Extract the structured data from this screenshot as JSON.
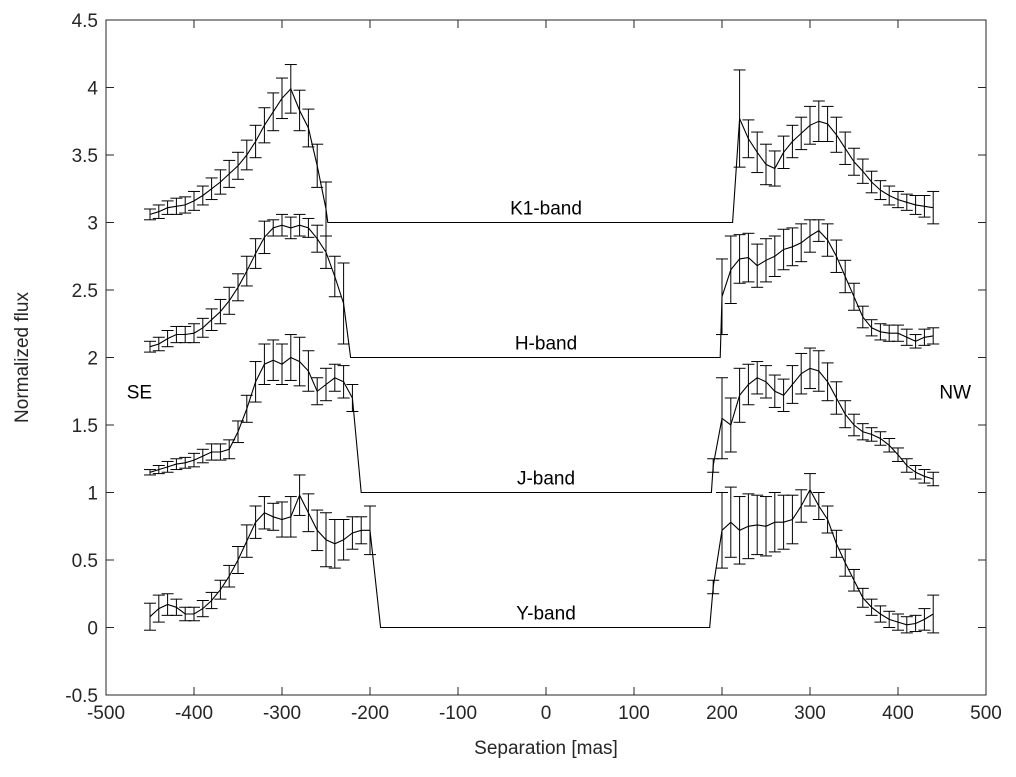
{
  "chart_data": {
    "type": "line",
    "xlabel": "Separation [mas]",
    "ylabel": "Normalized flux",
    "xlim": [
      -500,
      500
    ],
    "ylim": [
      -0.5,
      4.5
    ],
    "xticks": [
      -500,
      -400,
      -300,
      -200,
      -100,
      0,
      100,
      200,
      300,
      400,
      500
    ],
    "yticks": [
      -0.5,
      0,
      0.5,
      1,
      1.5,
      2,
      2.5,
      3,
      3.5,
      4,
      4.5
    ],
    "xtick_labels": [
      "-500",
      "-400",
      "-300",
      "-200",
      "-100",
      "0",
      "100",
      "200",
      "300",
      "400",
      "500"
    ],
    "ytick_labels": [
      "-0.5",
      "0",
      "0.5",
      "1",
      "1.5",
      "2",
      "2.5",
      "3",
      "3.5",
      "4",
      "4.5"
    ],
    "grid": false,
    "box": true,
    "annotations": [
      {
        "text": "SE",
        "x": -462,
        "y": 1.75
      },
      {
        "text": "NW",
        "x": 465,
        "y": 1.75
      }
    ],
    "series": [
      {
        "label": "K1-band",
        "label_pos": {
          "x": 0,
          "y": 3.11
        },
        "baseline": 3.0,
        "baseline_x": [
          -248,
          212
        ],
        "left": {
          "x": [
            -450,
            -440,
            -430,
            -420,
            -410,
            -400,
            -390,
            -380,
            -370,
            -360,
            -350,
            -340,
            -330,
            -320,
            -310,
            -300,
            -290,
            -280,
            -270,
            -260,
            -250
          ],
          "y": [
            3.06,
            3.08,
            3.11,
            3.12,
            3.13,
            3.16,
            3.2,
            3.25,
            3.3,
            3.36,
            3.42,
            3.5,
            3.6,
            3.72,
            3.82,
            3.92,
            3.99,
            3.83,
            3.7,
            3.42,
            3.1
          ],
          "err": [
            0.04,
            0.05,
            0.05,
            0.06,
            0.06,
            0.07,
            0.07,
            0.08,
            0.09,
            0.1,
            0.1,
            0.11,
            0.12,
            0.13,
            0.14,
            0.15,
            0.18,
            0.15,
            0.14,
            0.16,
            0.2
          ]
        },
        "right": {
          "x": [
            220,
            230,
            240,
            250,
            260,
            270,
            280,
            290,
            300,
            310,
            320,
            330,
            340,
            350,
            360,
            370,
            380,
            390,
            400,
            410,
            420,
            430,
            440
          ],
          "y": [
            3.77,
            3.62,
            3.52,
            3.43,
            3.4,
            3.52,
            3.6,
            3.66,
            3.72,
            3.75,
            3.73,
            3.65,
            3.55,
            3.45,
            3.38,
            3.3,
            3.24,
            3.2,
            3.17,
            3.15,
            3.13,
            3.12,
            3.11
          ],
          "err": [
            0.36,
            0.14,
            0.15,
            0.15,
            0.13,
            0.12,
            0.12,
            0.12,
            0.14,
            0.15,
            0.13,
            0.13,
            0.12,
            0.1,
            0.09,
            0.08,
            0.07,
            0.07,
            0.06,
            0.06,
            0.07,
            0.08,
            0.12
          ]
        }
      },
      {
        "label": "H-band",
        "label_pos": {
          "x": 0,
          "y": 2.11
        },
        "baseline": 2.0,
        "baseline_x": [
          -222,
          198
        ],
        "left": {
          "x": [
            -450,
            -440,
            -430,
            -420,
            -410,
            -400,
            -390,
            -380,
            -370,
            -360,
            -350,
            -340,
            -330,
            -320,
            -310,
            -300,
            -290,
            -280,
            -270,
            -260,
            -250,
            -240,
            -230
          ],
          "y": [
            2.08,
            2.1,
            2.14,
            2.17,
            2.17,
            2.18,
            2.22,
            2.28,
            2.34,
            2.42,
            2.52,
            2.64,
            2.77,
            2.89,
            2.96,
            2.98,
            2.96,
            2.98,
            2.96,
            2.88,
            2.78,
            2.6,
            2.4
          ],
          "err": [
            0.04,
            0.05,
            0.06,
            0.06,
            0.06,
            0.07,
            0.07,
            0.08,
            0.09,
            0.1,
            0.1,
            0.11,
            0.11,
            0.12,
            0.06,
            0.08,
            0.08,
            0.08,
            0.07,
            0.1,
            0.12,
            0.15,
            0.3
          ]
        },
        "right": {
          "x": [
            200,
            210,
            220,
            230,
            240,
            250,
            260,
            270,
            280,
            290,
            300,
            310,
            320,
            330,
            340,
            350,
            360,
            370,
            380,
            390,
            400,
            410,
            420,
            430,
            440
          ],
          "y": [
            2.45,
            2.65,
            2.73,
            2.74,
            2.68,
            2.72,
            2.75,
            2.8,
            2.82,
            2.85,
            2.9,
            2.94,
            2.87,
            2.75,
            2.6,
            2.45,
            2.3,
            2.22,
            2.19,
            2.18,
            2.18,
            2.15,
            2.12,
            2.15,
            2.16
          ],
          "err": [
            0.28,
            0.25,
            0.18,
            0.18,
            0.16,
            0.16,
            0.15,
            0.15,
            0.14,
            0.14,
            0.12,
            0.08,
            0.12,
            0.12,
            0.12,
            0.1,
            0.08,
            0.06,
            0.06,
            0.06,
            0.06,
            0.06,
            0.05,
            0.06,
            0.06
          ]
        }
      },
      {
        "label": "J-band",
        "label_pos": {
          "x": 0,
          "y": 1.11
        },
        "baseline": 1.0,
        "baseline_x": [
          -210,
          188
        ],
        "left": {
          "x": [
            -450,
            -440,
            -430,
            -420,
            -410,
            -400,
            -390,
            -380,
            -370,
            -360,
            -350,
            -340,
            -330,
            -320,
            -310,
            -300,
            -290,
            -280,
            -270,
            -260,
            -250,
            -240,
            -230,
            -220
          ],
          "y": [
            1.15,
            1.17,
            1.19,
            1.21,
            1.22,
            1.24,
            1.27,
            1.3,
            1.3,
            1.32,
            1.45,
            1.62,
            1.82,
            1.95,
            1.98,
            1.95,
            2.0,
            1.97,
            1.9,
            1.75,
            1.8,
            1.85,
            1.82,
            1.7
          ],
          "err": [
            0.02,
            0.03,
            0.04,
            0.04,
            0.04,
            0.05,
            0.05,
            0.06,
            0.06,
            0.07,
            0.08,
            0.1,
            0.15,
            0.15,
            0.15,
            0.15,
            0.17,
            0.18,
            0.15,
            0.1,
            0.12,
            0.1,
            0.12,
            0.1
          ]
        },
        "right": {
          "x": [
            190,
            200,
            210,
            220,
            230,
            240,
            250,
            260,
            270,
            280,
            290,
            300,
            310,
            320,
            330,
            340,
            350,
            360,
            370,
            380,
            390,
            400,
            410,
            420,
            430,
            440
          ],
          "y": [
            1.2,
            1.55,
            1.5,
            1.72,
            1.8,
            1.85,
            1.82,
            1.75,
            1.72,
            1.8,
            1.88,
            1.92,
            1.9,
            1.82,
            1.7,
            1.58,
            1.5,
            1.45,
            1.43,
            1.4,
            1.35,
            1.28,
            1.2,
            1.15,
            1.12,
            1.1
          ],
          "err": [
            0.05,
            0.3,
            0.2,
            0.2,
            0.15,
            0.12,
            0.12,
            0.12,
            0.12,
            0.14,
            0.15,
            0.15,
            0.15,
            0.14,
            0.12,
            0.1,
            0.08,
            0.06,
            0.05,
            0.05,
            0.05,
            0.05,
            0.05,
            0.05,
            0.05,
            0.05
          ]
        }
      },
      {
        "label": "Y-band",
        "label_pos": {
          "x": 0,
          "y": 0.11
        },
        "baseline": 0.0,
        "baseline_x": [
          -188,
          186
        ],
        "left": {
          "x": [
            -450,
            -440,
            -430,
            -420,
            -410,
            -400,
            -390,
            -380,
            -370,
            -360,
            -350,
            -340,
            -330,
            -320,
            -310,
            -300,
            -290,
            -280,
            -270,
            -260,
            -250,
            -240,
            -230,
            -220,
            -210,
            -200
          ],
          "y": [
            0.08,
            0.14,
            0.17,
            0.15,
            0.1,
            0.1,
            0.14,
            0.2,
            0.28,
            0.38,
            0.5,
            0.64,
            0.78,
            0.85,
            0.82,
            0.8,
            0.82,
            0.98,
            0.85,
            0.72,
            0.65,
            0.62,
            0.65,
            0.7,
            0.72,
            0.72
          ],
          "err": [
            0.1,
            0.1,
            0.08,
            0.06,
            0.05,
            0.05,
            0.06,
            0.06,
            0.07,
            0.08,
            0.1,
            0.12,
            0.12,
            0.12,
            0.1,
            0.13,
            0.15,
            0.15,
            0.14,
            0.15,
            0.2,
            0.18,
            0.15,
            0.12,
            0.1,
            0.18
          ]
        },
        "right": {
          "x": [
            190,
            200,
            210,
            220,
            230,
            240,
            250,
            260,
            270,
            280,
            290,
            300,
            310,
            320,
            330,
            340,
            350,
            360,
            370,
            380,
            390,
            400,
            410,
            420,
            430,
            440
          ],
          "y": [
            0.3,
            0.72,
            0.78,
            0.72,
            0.75,
            0.76,
            0.75,
            0.78,
            0.78,
            0.8,
            0.9,
            1.02,
            0.9,
            0.8,
            0.62,
            0.48,
            0.35,
            0.22,
            0.15,
            0.1,
            0.06,
            0.04,
            0.02,
            0.03,
            0.06,
            0.1
          ],
          "err": [
            0.05,
            0.28,
            0.26,
            0.25,
            0.24,
            0.22,
            0.22,
            0.22,
            0.2,
            0.18,
            0.12,
            0.12,
            0.1,
            0.1,
            0.1,
            0.1,
            0.08,
            0.07,
            0.06,
            0.06,
            0.06,
            0.06,
            0.06,
            0.06,
            0.08,
            0.14
          ]
        }
      }
    ]
  }
}
